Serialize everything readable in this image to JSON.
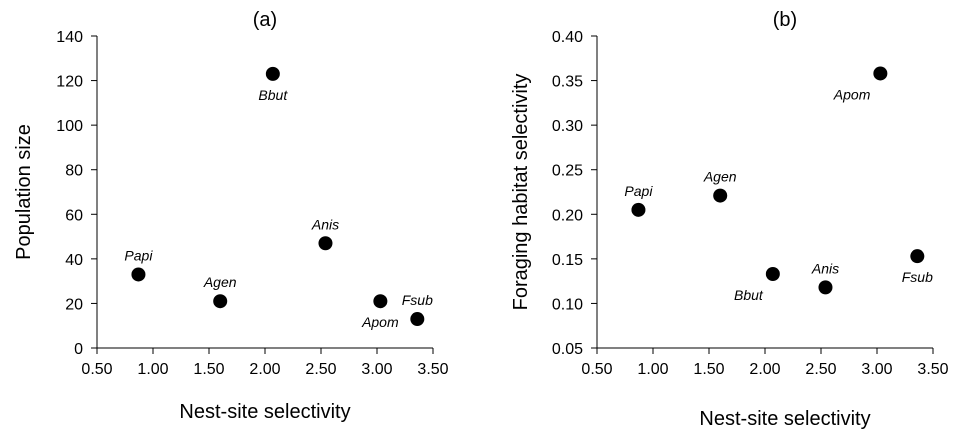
{
  "chart_data": [
    {
      "type": "scatter",
      "title": "(a)",
      "xlabel": "Nest-site selectivity",
      "ylabel": "Population size",
      "xlim": [
        0.5,
        3.5
      ],
      "ylim": [
        0,
        140
      ],
      "xticks": [
        "0.50",
        "1.00",
        "1.50",
        "2.00",
        "2.50",
        "3.00",
        "3.50"
      ],
      "yticks": [
        "0",
        "20",
        "40",
        "60",
        "80",
        "100",
        "120",
        "140"
      ],
      "grid": false,
      "points": [
        {
          "label": "Papi",
          "x": 0.87,
          "y": 33,
          "label_pos": "above"
        },
        {
          "label": "Agen",
          "x": 1.6,
          "y": 21,
          "label_pos": "above"
        },
        {
          "label": "Bbut",
          "x": 2.07,
          "y": 123,
          "label_pos": "below"
        },
        {
          "label": "Anis",
          "x": 2.54,
          "y": 47,
          "label_pos": "above"
        },
        {
          "label": "Apom",
          "x": 3.03,
          "y": 21,
          "label_pos": "below"
        },
        {
          "label": "Fsub",
          "x": 3.36,
          "y": 13,
          "label_pos": "above"
        }
      ]
    },
    {
      "type": "scatter",
      "title": "(b)",
      "xlabel": "Nest-site selectivity",
      "ylabel": "Foraging habitat selectivity",
      "xlim": [
        0.5,
        3.5
      ],
      "ylim": [
        0.05,
        0.4
      ],
      "xticks": [
        "0.50",
        "1.00",
        "1.50",
        "2.00",
        "2.50",
        "3.00",
        "3.50"
      ],
      "yticks": [
        "0.05",
        "0.10",
        "0.15",
        "0.20",
        "0.25",
        "0.30",
        "0.35",
        "0.40"
      ],
      "grid": false,
      "points": [
        {
          "label": "Papi",
          "x": 0.87,
          "y": 0.205,
          "label_pos": "above"
        },
        {
          "label": "Agen",
          "x": 1.6,
          "y": 0.221,
          "label_pos": "above"
        },
        {
          "label": "Bbut",
          "x": 2.07,
          "y": 0.133,
          "label_pos": "below-left"
        },
        {
          "label": "Anis",
          "x": 2.54,
          "y": 0.118,
          "label_pos": "above"
        },
        {
          "label": "Apom",
          "x": 3.03,
          "y": 0.358,
          "label_pos": "below-left"
        },
        {
          "label": "Fsub",
          "x": 3.36,
          "y": 0.153,
          "label_pos": "below"
        }
      ]
    }
  ]
}
